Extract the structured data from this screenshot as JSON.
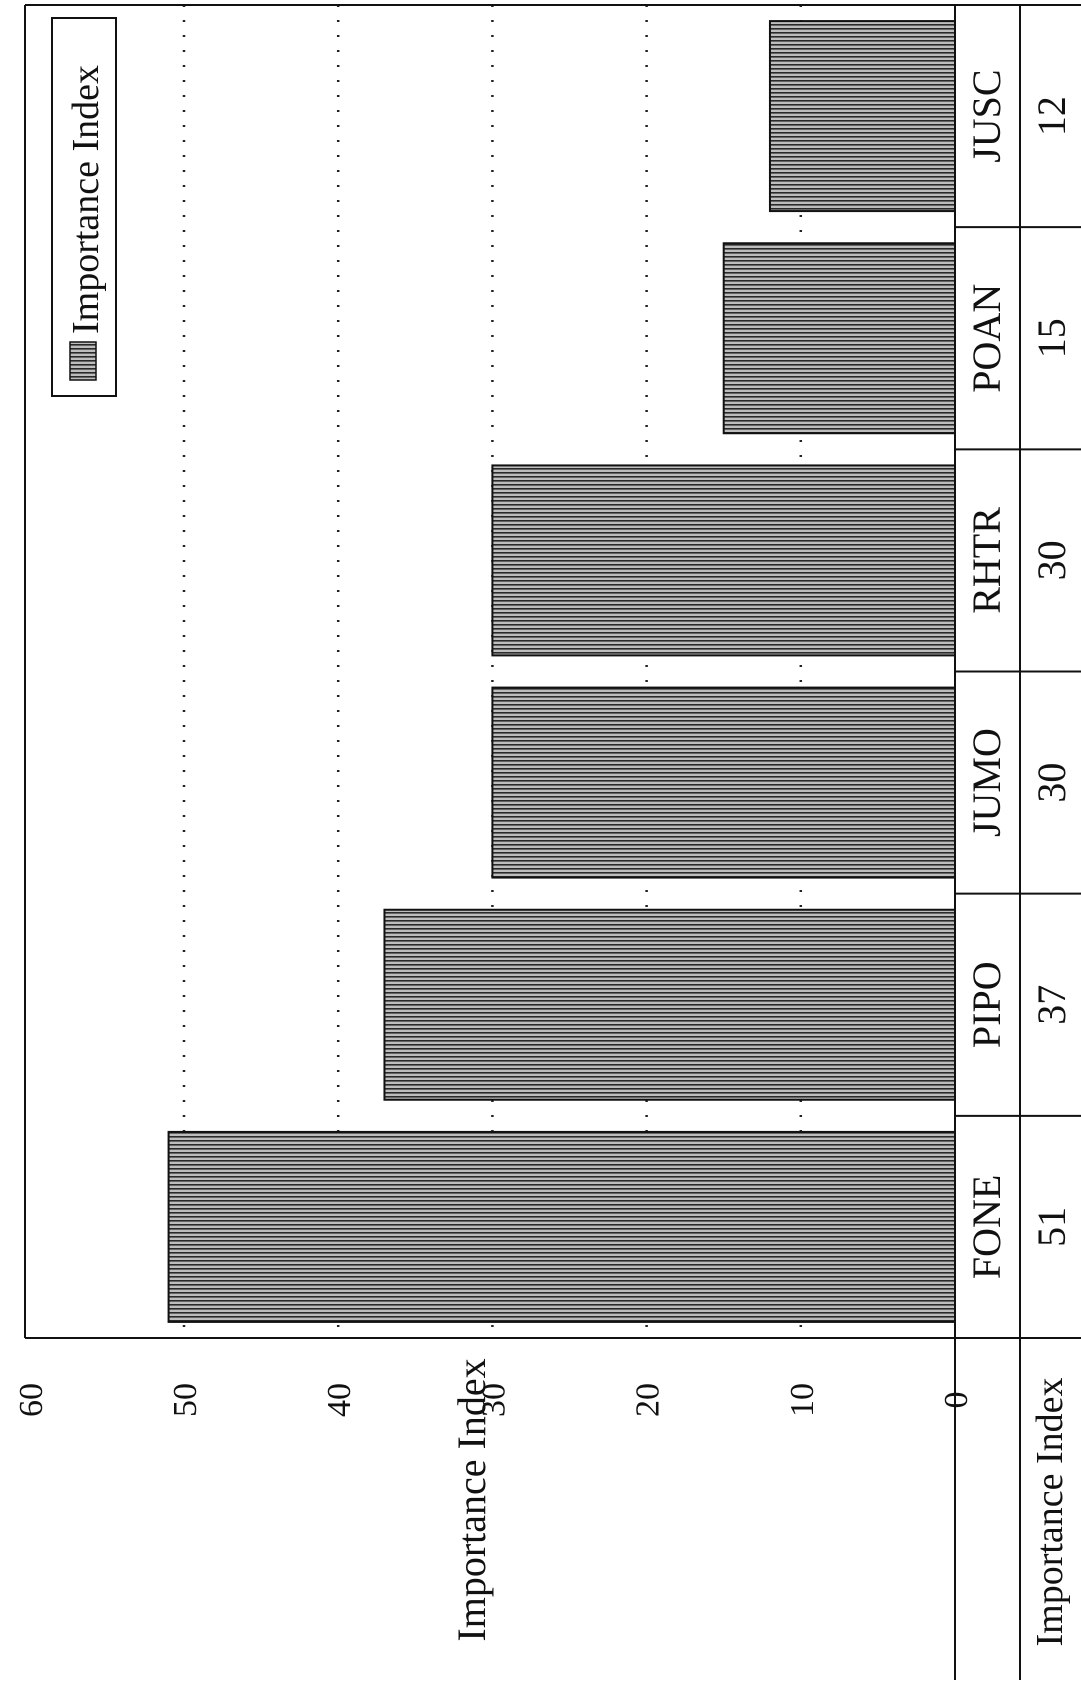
{
  "chart_data": {
    "type": "bar",
    "orientation": "rotated-90",
    "categories": [
      "FONE",
      "PIPO",
      "JUMO",
      "RHTR",
      "POAN",
      "JUSC"
    ],
    "series": [
      {
        "name": "Importance Index",
        "values": [
          51,
          37,
          30,
          30,
          15,
          12
        ]
      }
    ],
    "ylabel": "Importance Index",
    "yticks": [
      0,
      10,
      20,
      30,
      40,
      50,
      60
    ],
    "ylim": [
      0,
      60
    ],
    "grid": true,
    "legend": {
      "position": "top-right",
      "entries": [
        "Importance Index"
      ]
    },
    "data_table": {
      "row_label": "Importance Index",
      "values": [
        "51",
        "37",
        "30",
        "30",
        "15",
        "12"
      ]
    },
    "colors": {
      "bar_fill": "#8c8c8c",
      "bar_stroke": "#111111",
      "grid": "#222222"
    }
  }
}
